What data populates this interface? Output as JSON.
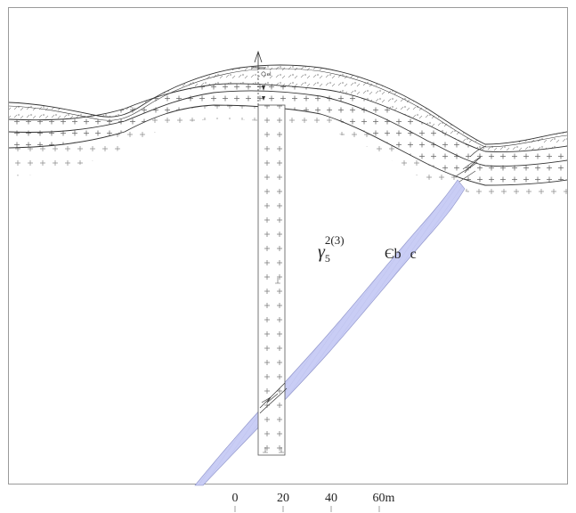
{
  "labels": {
    "granite_symbol": "γ",
    "granite_sub": "5",
    "granite_sup": "2(3)",
    "formation": "Єb",
    "formation_suffix": "c"
  },
  "scale_bar": {
    "ticks": [
      "0",
      "20",
      "40",
      "60m"
    ]
  },
  "colors": {
    "ore_body": "#c9cdf5",
    "ore_edge": "#8c91c8",
    "line": "#333333",
    "pattern": "#555555",
    "border": "#9a9a9a"
  },
  "symbols": {
    "borehole": "drill-hole-icon",
    "fill_cross": "+",
    "fill_pebble": "ᵖ",
    "fill_base": "⊥"
  }
}
